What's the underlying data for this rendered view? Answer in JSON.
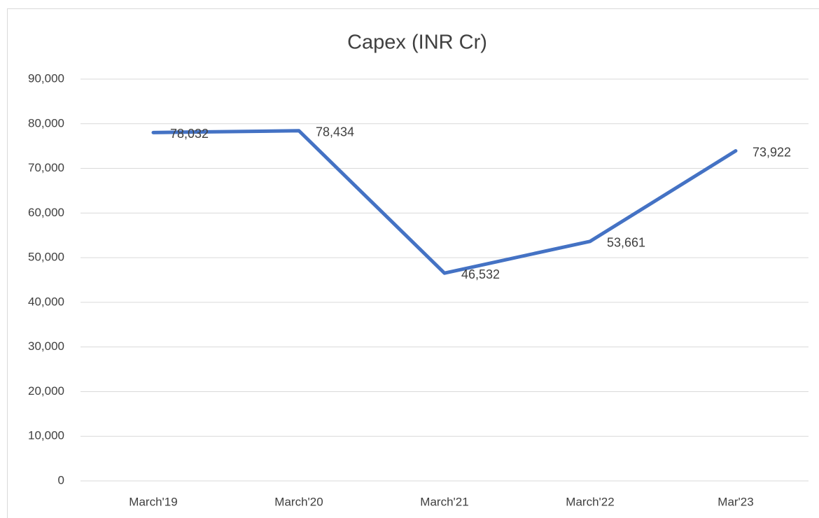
{
  "chart_data": {
    "type": "line",
    "title": "Capex (INR Cr)",
    "categories": [
      "March'19",
      "March'20",
      "March'21",
      "March'22",
      "Mar'23"
    ],
    "series": [
      {
        "name": "Capex",
        "color": "#4472c4",
        "values": [
          78032,
          78434,
          46532,
          53661,
          73922
        ],
        "value_labels": [
          "78,032",
          "78,434",
          "46,532",
          "53,661",
          "73,922"
        ]
      }
    ],
    "ylim": [
      0,
      90000
    ],
    "yticks": [
      0,
      {
        "value": 10000,
        "label": "10,000"
      },
      {
        "value": 20000,
        "label": "20,000"
      },
      {
        "value": 30000,
        "label": "30,000"
      },
      {
        "value": 40000,
        "label": "40,000"
      },
      {
        "value": 50000,
        "label": "50,000"
      },
      {
        "value": 60000,
        "label": "60,000"
      },
      {
        "value": 70000,
        "label": "70,000"
      },
      {
        "value": 80000,
        "label": "80,000"
      },
      {
        "value": 90000,
        "label": "90,000"
      }
    ],
    "grid": true,
    "legend": false
  }
}
